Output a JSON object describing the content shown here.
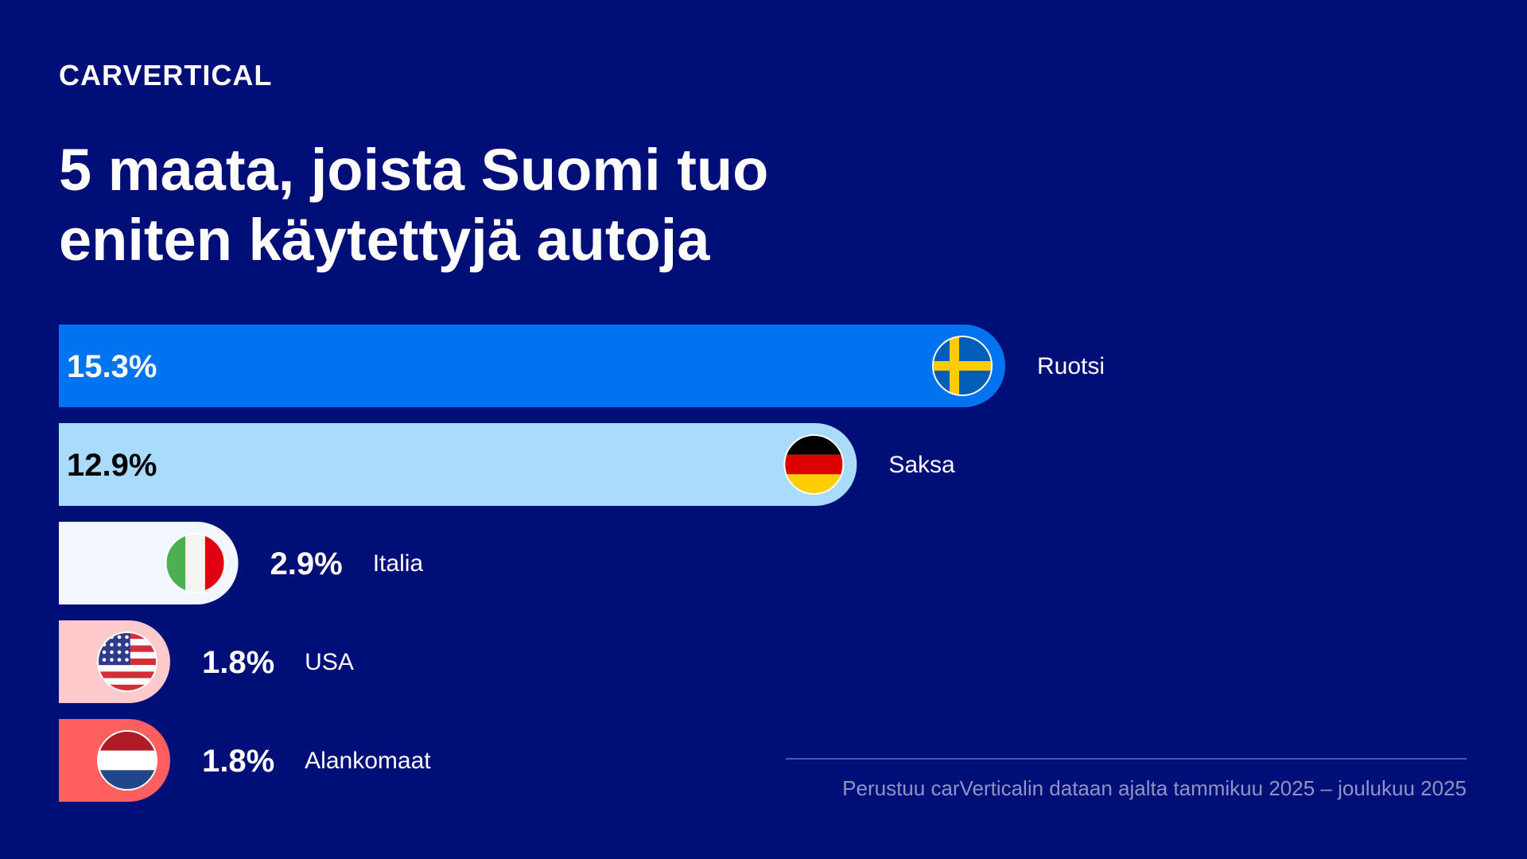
{
  "logo": {
    "text": "CARVERTICAL"
  },
  "title": {
    "line1": "5 maata, joista Suomi tuo",
    "line2": "eniten käytettyjä autoja"
  },
  "source": "Perustuu carVerticalin dataan ajalta tammikuu 2025 – joulukuu 2025",
  "chart_data": {
    "type": "bar",
    "orientation": "horizontal",
    "title": "5 maata, joista Suomi tuo eniten käytettyjä autoja",
    "categories": [
      "Ruotsi",
      "Saksa",
      "Italia",
      "USA",
      "Alankomaat"
    ],
    "values": [
      15.3,
      12.9,
      2.9,
      1.8,
      1.8
    ],
    "value_labels": [
      "15.3%",
      "12.9%",
      "2.9%",
      "1.8%",
      "1.8%"
    ],
    "flag_icons": [
      "sweden-flag-icon",
      "germany-flag-icon",
      "italy-flag-icon",
      "usa-flag-icon",
      "netherlands-flag-icon"
    ],
    "bar_colors": [
      "#0074f0",
      "#a9dbfd",
      "#f1f7fd",
      "#fecacb",
      "#ff5f5f"
    ],
    "value_label_colors": [
      "#ffffff",
      "#000000",
      "#000000",
      "#ffffff",
      "#ffffff"
    ],
    "unit": "%",
    "xlim": [
      0,
      15.3
    ],
    "grid": false,
    "legend": "none"
  }
}
